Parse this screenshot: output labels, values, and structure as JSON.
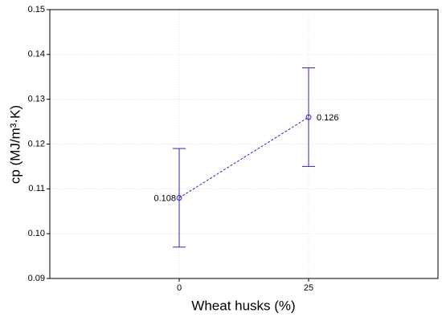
{
  "chart_data": {
    "type": "line",
    "x_label": "Wheat husks (%)",
    "y_label": "cp (MJ/m³·K)",
    "x": [
      0,
      25
    ],
    "series": [
      {
        "values": [
          0.108,
          0.126
        ],
        "errors": [
          0.011,
          0.011
        ],
        "color": "#2a2ab4"
      }
    ],
    "xlim": [
      -25,
      50
    ],
    "xticks": [
      0,
      25
    ],
    "ylim": [
      0.09,
      0.15
    ],
    "yticks": [
      0.09,
      {
        "value": 0.1,
        "label": "0.10"
      },
      0.11,
      0.12,
      0.13,
      0.14,
      0.15
    ],
    "grid": true
  }
}
